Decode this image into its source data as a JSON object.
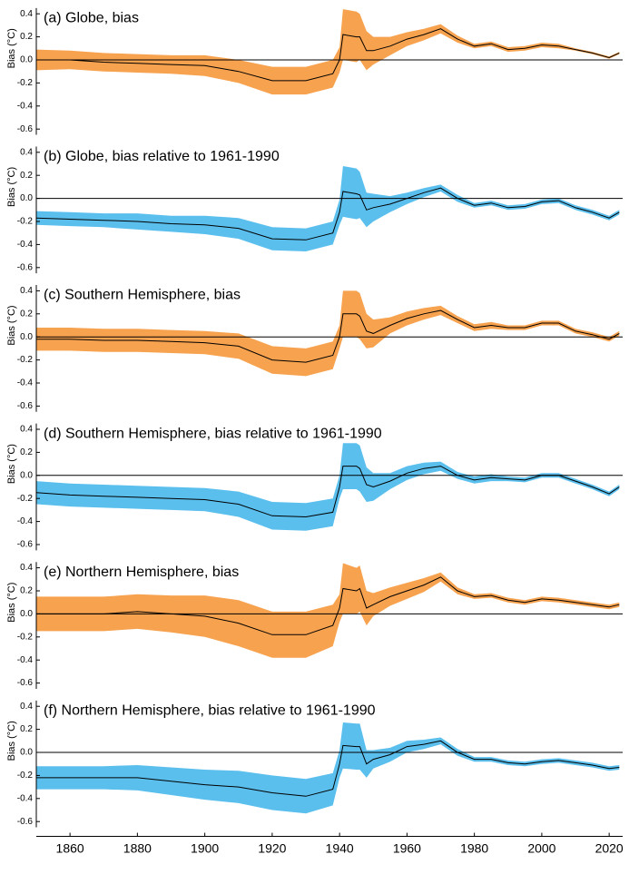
{
  "chart_data": [
    {
      "type": "band-line",
      "title": "(a) Globe, bias",
      "y_label": "Bias (°C)",
      "band_color": "#f7a24f",
      "line_color": "#000000",
      "zero_line": true,
      "xlim": [
        1850,
        2024
      ],
      "ylim": [
        -0.65,
        0.45
      ],
      "yticks": [
        0.4,
        0.2,
        {
          "value": 0,
          "label": "0.0"
        },
        -0.2,
        -0.4,
        -0.6
      ],
      "x": [
        1850,
        1860,
        1870,
        1880,
        1890,
        1900,
        1910,
        1920,
        1930,
        1938,
        1940,
        1941,
        1945,
        1946,
        1948,
        1950,
        1955,
        1960,
        1965,
        1970,
        1975,
        1980,
        1985,
        1990,
        1995,
        2000,
        2005,
        2010,
        2015,
        2020,
        2023
      ],
      "values": [
        0.0,
        0.0,
        -0.02,
        -0.03,
        -0.04,
        -0.05,
        -0.1,
        -0.18,
        -0.18,
        -0.12,
        0.0,
        0.22,
        0.2,
        0.2,
        0.08,
        0.08,
        0.12,
        0.18,
        0.22,
        0.27,
        0.18,
        0.12,
        0.14,
        0.09,
        0.1,
        0.13,
        0.12,
        0.09,
        0.06,
        0.02,
        0.06
      ],
      "errors": [
        0.09,
        0.08,
        0.08,
        0.08,
        0.08,
        0.09,
        0.1,
        0.12,
        0.12,
        0.12,
        0.11,
        0.22,
        0.22,
        0.2,
        0.17,
        0.12,
        0.08,
        0.06,
        0.05,
        0.04,
        0.03,
        0.02,
        0.02,
        0.02,
        0.02,
        0.02,
        0.02,
        0.01,
        0.01,
        0.01,
        0.01
      ]
    },
    {
      "type": "band-line",
      "title": "(b) Globe, bias relative to 1961-1990",
      "y_label": "Bias (°C)",
      "band_color": "#5bbfee",
      "line_color": "#000000",
      "zero_line": true,
      "xlim": [
        1850,
        2024
      ],
      "ylim": [
        -0.65,
        0.45
      ],
      "yticks": [
        0.4,
        0.2,
        {
          "value": 0,
          "label": "0.0"
        },
        -0.2,
        -0.4,
        -0.6
      ],
      "x": [
        1850,
        1860,
        1870,
        1880,
        1890,
        1900,
        1910,
        1920,
        1930,
        1938,
        1940,
        1941,
        1945,
        1946,
        1948,
        1950,
        1955,
        1960,
        1965,
        1970,
        1975,
        1980,
        1985,
        1990,
        1995,
        2000,
        2005,
        2010,
        2015,
        2020,
        2023
      ],
      "values": [
        -0.17,
        -0.18,
        -0.19,
        -0.2,
        -0.22,
        -0.23,
        -0.26,
        -0.35,
        -0.36,
        -0.3,
        -0.12,
        0.06,
        0.04,
        0.03,
        -0.1,
        -0.08,
        -0.05,
        0.0,
        0.05,
        0.09,
        0.0,
        -0.06,
        -0.04,
        -0.08,
        -0.07,
        -0.03,
        -0.02,
        -0.08,
        -0.12,
        -0.17,
        -0.12
      ],
      "errors": [
        0.06,
        0.06,
        0.06,
        0.07,
        0.07,
        0.08,
        0.09,
        0.1,
        0.1,
        0.1,
        0.11,
        0.22,
        0.22,
        0.2,
        0.15,
        0.12,
        0.07,
        0.05,
        0.04,
        0.03,
        0.03,
        0.02,
        0.02,
        0.02,
        0.02,
        0.02,
        0.02,
        0.02,
        0.02,
        0.02,
        0.02
      ]
    },
    {
      "type": "band-line",
      "title": "(c) Southern Hemisphere, bias",
      "y_label": "Bias (°C)",
      "band_color": "#f7a24f",
      "line_color": "#000000",
      "zero_line": true,
      "xlim": [
        1850,
        2024
      ],
      "ylim": [
        -0.65,
        0.45
      ],
      "yticks": [
        0.4,
        0.2,
        {
          "value": 0,
          "label": "0.0"
        },
        -0.2,
        -0.4,
        -0.6
      ],
      "x": [
        1850,
        1860,
        1870,
        1880,
        1890,
        1900,
        1910,
        1920,
        1930,
        1938,
        1940,
        1941,
        1945,
        1946,
        1948,
        1950,
        1955,
        1960,
        1965,
        1970,
        1975,
        1980,
        1985,
        1990,
        1995,
        2000,
        2005,
        2010,
        2015,
        2020,
        2023
      ],
      "values": [
        -0.02,
        -0.02,
        -0.03,
        -0.03,
        -0.04,
        -0.05,
        -0.08,
        -0.2,
        -0.22,
        -0.16,
        0.0,
        0.2,
        0.2,
        0.18,
        0.05,
        0.03,
        0.1,
        0.16,
        0.2,
        0.23,
        0.15,
        0.08,
        0.1,
        0.08,
        0.08,
        0.12,
        0.12,
        0.05,
        0.02,
        -0.02,
        0.03
      ],
      "errors": [
        0.1,
        0.1,
        0.1,
        0.1,
        0.1,
        0.1,
        0.11,
        0.12,
        0.12,
        0.12,
        0.1,
        0.2,
        0.2,
        0.2,
        0.15,
        0.12,
        0.07,
        0.06,
        0.05,
        0.04,
        0.03,
        0.03,
        0.03,
        0.02,
        0.02,
        0.02,
        0.02,
        0.02,
        0.02,
        0.02,
        0.02
      ]
    },
    {
      "type": "band-line",
      "title": "(d) Southern Hemisphere, bias relative to 1961-1990",
      "y_label": "Bias (°C)",
      "band_color": "#5bbfee",
      "line_color": "#000000",
      "zero_line": true,
      "xlim": [
        1850,
        2024
      ],
      "ylim": [
        -0.65,
        0.45
      ],
      "yticks": [
        0.4,
        0.2,
        {
          "value": 0,
          "label": "0.0"
        },
        -0.2,
        -0.4,
        -0.6
      ],
      "x": [
        1850,
        1860,
        1870,
        1880,
        1890,
        1900,
        1910,
        1920,
        1930,
        1938,
        1940,
        1941,
        1945,
        1946,
        1948,
        1950,
        1955,
        1960,
        1965,
        1970,
        1975,
        1980,
        1985,
        1990,
        1995,
        2000,
        2005,
        2010,
        2015,
        2020,
        2023
      ],
      "values": [
        -0.15,
        -0.17,
        -0.18,
        -0.19,
        -0.2,
        -0.21,
        -0.25,
        -0.35,
        -0.36,
        -0.32,
        -0.1,
        0.08,
        0.08,
        0.06,
        -0.08,
        -0.1,
        -0.05,
        0.02,
        0.06,
        0.08,
        0.0,
        -0.04,
        -0.02,
        -0.03,
        -0.04,
        0.0,
        0.0,
        -0.05,
        -0.1,
        -0.16,
        -0.1
      ],
      "errors": [
        0.1,
        0.1,
        0.1,
        0.1,
        0.1,
        0.1,
        0.11,
        0.12,
        0.12,
        0.12,
        0.1,
        0.2,
        0.2,
        0.2,
        0.15,
        0.12,
        0.07,
        0.06,
        0.05,
        0.04,
        0.03,
        0.03,
        0.03,
        0.02,
        0.02,
        0.02,
        0.02,
        0.02,
        0.02,
        0.02,
        0.02
      ]
    },
    {
      "type": "band-line",
      "title": "(e) Northern Hemisphere, bias",
      "y_label": "Bias (°C)",
      "band_color": "#f7a24f",
      "line_color": "#000000",
      "zero_line": true,
      "xlim": [
        1850,
        2024
      ],
      "ylim": [
        -0.65,
        0.45
      ],
      "yticks": [
        0.4,
        0.2,
        {
          "value": 0,
          "label": "0.0"
        },
        -0.2,
        -0.4,
        -0.6
      ],
      "x": [
        1850,
        1860,
        1870,
        1880,
        1890,
        1900,
        1910,
        1920,
        1930,
        1938,
        1940,
        1941,
        1945,
        1946,
        1948,
        1950,
        1955,
        1960,
        1965,
        1970,
        1975,
        1980,
        1985,
        1990,
        1995,
        2000,
        2005,
        2010,
        2015,
        2020,
        2023
      ],
      "values": [
        0.0,
        0.0,
        0.0,
        0.02,
        0.0,
        -0.02,
        -0.08,
        -0.18,
        -0.18,
        -0.1,
        0.05,
        0.22,
        0.2,
        0.22,
        0.05,
        0.08,
        0.15,
        0.2,
        0.25,
        0.32,
        0.2,
        0.15,
        0.16,
        0.12,
        0.1,
        0.13,
        0.12,
        0.1,
        0.08,
        0.06,
        0.08
      ],
      "errors": [
        0.15,
        0.15,
        0.15,
        0.15,
        0.16,
        0.18,
        0.2,
        0.2,
        0.2,
        0.18,
        0.12,
        0.22,
        0.2,
        0.2,
        0.15,
        0.1,
        0.08,
        0.07,
        0.06,
        0.04,
        0.03,
        0.02,
        0.02,
        0.02,
        0.02,
        0.02,
        0.02,
        0.02,
        0.02,
        0.02,
        0.02
      ]
    },
    {
      "type": "band-line",
      "title": "(f) Northern Hemisphere, bias relative to 1961-1990",
      "y_label": "Bias (°C)",
      "band_color": "#5bbfee",
      "line_color": "#000000",
      "zero_line": true,
      "xlim": [
        1850,
        2024
      ],
      "ylim": [
        -0.65,
        0.45
      ],
      "yticks": [
        0.4,
        0.2,
        {
          "value": 0,
          "label": "0.0"
        },
        -0.2,
        -0.4,
        -0.6
      ],
      "xticks": [
        1860,
        1880,
        1900,
        1920,
        1940,
        1960,
        1980,
        2000,
        2020
      ],
      "x": [
        1850,
        1860,
        1870,
        1880,
        1890,
        1900,
        1910,
        1920,
        1930,
        1938,
        1940,
        1941,
        1945,
        1946,
        1948,
        1950,
        1955,
        1960,
        1965,
        1970,
        1975,
        1980,
        1985,
        1990,
        1995,
        2000,
        2005,
        2010,
        2015,
        2020,
        2023
      ],
      "values": [
        -0.22,
        -0.22,
        -0.22,
        -0.22,
        -0.25,
        -0.28,
        -0.3,
        -0.35,
        -0.38,
        -0.32,
        -0.1,
        0.06,
        0.05,
        0.05,
        -0.1,
        -0.06,
        -0.02,
        0.05,
        0.07,
        0.1,
        0.0,
        -0.06,
        -0.06,
        -0.09,
        -0.1,
        -0.08,
        -0.07,
        -0.09,
        -0.11,
        -0.14,
        -0.13
      ],
      "errors": [
        0.1,
        0.1,
        0.1,
        0.11,
        0.12,
        0.13,
        0.14,
        0.15,
        0.15,
        0.14,
        0.12,
        0.2,
        0.2,
        0.2,
        0.12,
        0.08,
        0.06,
        0.05,
        0.04,
        0.03,
        0.03,
        0.02,
        0.02,
        0.02,
        0.02,
        0.02,
        0.02,
        0.02,
        0.02,
        0.02,
        0.02
      ]
    }
  ]
}
